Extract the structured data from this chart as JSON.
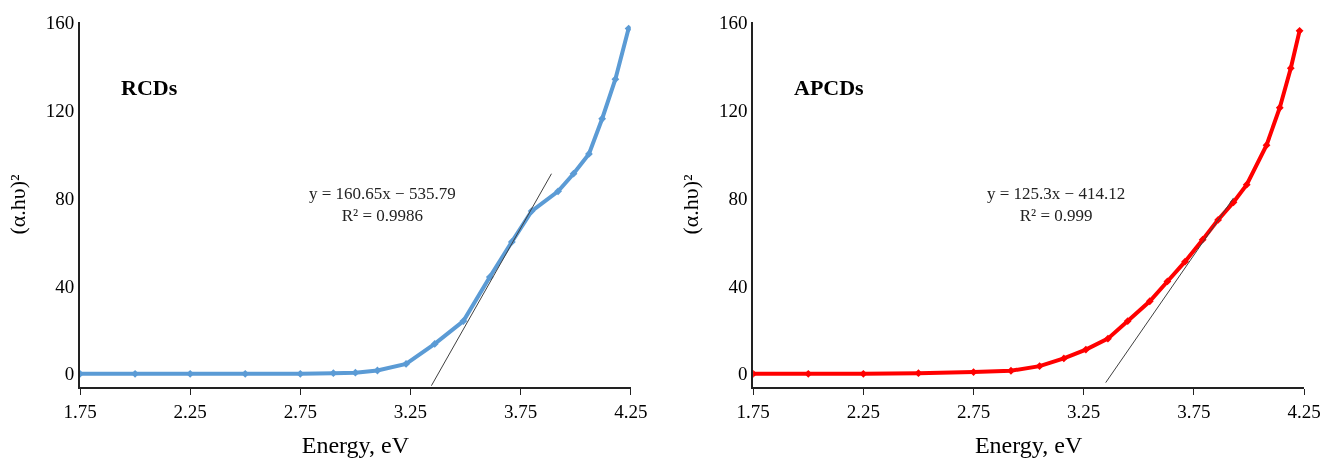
{
  "chart_data": [
    {
      "type": "line",
      "title": "RCDs",
      "xlabel": "Energy, eV",
      "ylabel": "(α.hυ)²",
      "xlim": [
        1.75,
        4.25
      ],
      "xticks": [
        1.75,
        2.25,
        2.75,
        3.25,
        3.75,
        4.25
      ],
      "ylim": [
        -6,
        160
      ],
      "yticks": [
        0,
        40,
        80,
        120,
        160
      ],
      "annotations": [
        "y = 160.65x − 535.79\nR² = 0.9986"
      ],
      "series": [
        {
          "color": "#5b9bd5",
          "marker": "diamond",
          "x": [
            1.75,
            2.0,
            2.25,
            2.5,
            2.75,
            2.9,
            3.0,
            3.1,
            3.23,
            3.36,
            3.49,
            3.61,
            3.71,
            3.8,
            3.92,
            3.99,
            4.06,
            4.12,
            4.18,
            4.24
          ],
          "values": [
            0,
            0,
            0,
            0,
            0,
            0.3,
            0.5,
            1.5,
            4.5,
            13.6,
            24,
            44,
            60,
            74,
            83,
            91,
            100,
            116,
            134,
            157
          ]
        },
        {
          "color": "#404040",
          "marker": "none",
          "x": [
            3.345,
            3.89
          ],
          "values": [
            -5.4,
            91
          ]
        }
      ]
    },
    {
      "type": "line",
      "title": "APCDs",
      "xlabel": "Energy, eV",
      "ylabel": "(α.hυ)²",
      "xlim": [
        1.75,
        4.25
      ],
      "xticks": [
        1.75,
        2.25,
        2.75,
        3.25,
        3.75,
        4.25
      ],
      "ylim": [
        -6,
        160
      ],
      "yticks": [
        0,
        40,
        80,
        120,
        160
      ],
      "annotations": [
        "y = 125.3x − 414.12\nR² = 0.999"
      ],
      "series": [
        {
          "color": "#ff0000",
          "marker": "diamond",
          "x": [
            1.75,
            2.0,
            2.25,
            2.5,
            2.75,
            2.92,
            3.05,
            3.16,
            3.26,
            3.36,
            3.45,
            3.55,
            3.63,
            3.71,
            3.79,
            3.86,
            3.93,
            3.99,
            4.08,
            4.14,
            4.19,
            4.23
          ],
          "values": [
            0,
            0,
            0,
            0.3,
            0.8,
            1.4,
            3.5,
            7,
            11,
            16,
            24,
            33,
            42,
            51,
            61,
            70,
            78,
            86,
            104,
            121,
            139,
            156
          ]
        },
        {
          "color": "#404040",
          "marker": "none",
          "x": [
            3.35,
            3.93
          ],
          "values": [
            -4,
            80
          ]
        }
      ]
    }
  ]
}
